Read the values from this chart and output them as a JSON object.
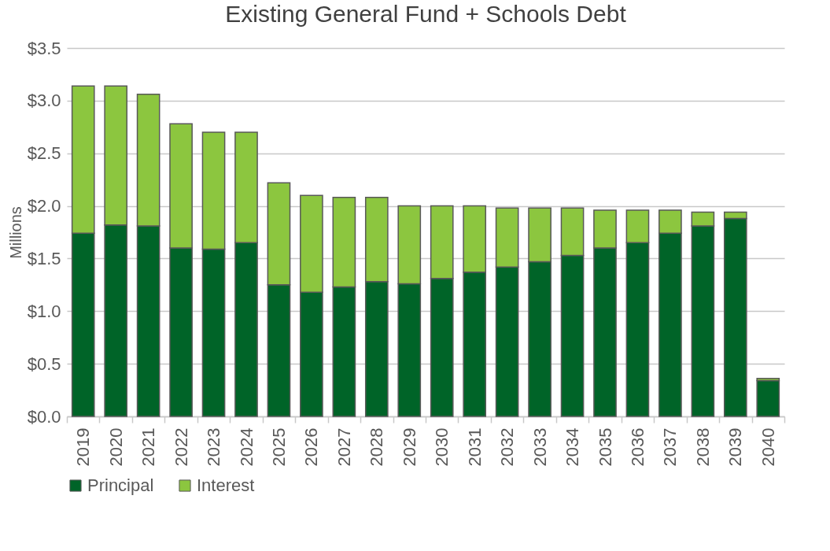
{
  "chart_data": {
    "type": "bar",
    "title": "Existing General Fund + Schools Debt",
    "ylabel": "Millions",
    "stacked": true,
    "grid": "y",
    "legend": "bottom",
    "categories": [
      "2019",
      "2020",
      "2021",
      "2022",
      "2023",
      "2024",
      "2025",
      "2026",
      "2027",
      "2028",
      "2029",
      "2030",
      "2031",
      "2032",
      "2033",
      "2034",
      "2035",
      "2036",
      "2037",
      "2038",
      "2039",
      "2040"
    ],
    "series": [
      {
        "name": "Principal",
        "color": "#006428",
        "values": [
          1.74,
          1.82,
          1.81,
          1.6,
          1.59,
          1.65,
          1.25,
          1.18,
          1.23,
          1.28,
          1.26,
          1.31,
          1.37,
          1.42,
          1.47,
          1.53,
          1.6,
          1.65,
          1.74,
          1.81,
          1.88,
          0.34
        ]
      },
      {
        "name": "Interest",
        "color": "#8cc63f",
        "values": [
          1.4,
          1.32,
          1.25,
          1.18,
          1.11,
          1.05,
          0.97,
          0.92,
          0.85,
          0.8,
          0.74,
          0.69,
          0.63,
          0.56,
          0.51,
          0.45,
          0.36,
          0.31,
          0.22,
          0.13,
          0.06,
          0.02
        ]
      }
    ],
    "ylim": [
      0,
      3.5
    ],
    "yticks": [
      {
        "value": 0,
        "label": "$0.0"
      },
      {
        "value": 0.5,
        "label": "$0.5"
      },
      {
        "value": 1,
        "label": "$1.0"
      },
      {
        "value": 1.5,
        "label": "$1.5"
      },
      {
        "value": 2,
        "label": "$2.0"
      },
      {
        "value": 2.5,
        "label": "$2.5"
      },
      {
        "value": 3,
        "label": "$3.0"
      },
      {
        "value": 3.5,
        "label": "$3.5"
      }
    ]
  }
}
